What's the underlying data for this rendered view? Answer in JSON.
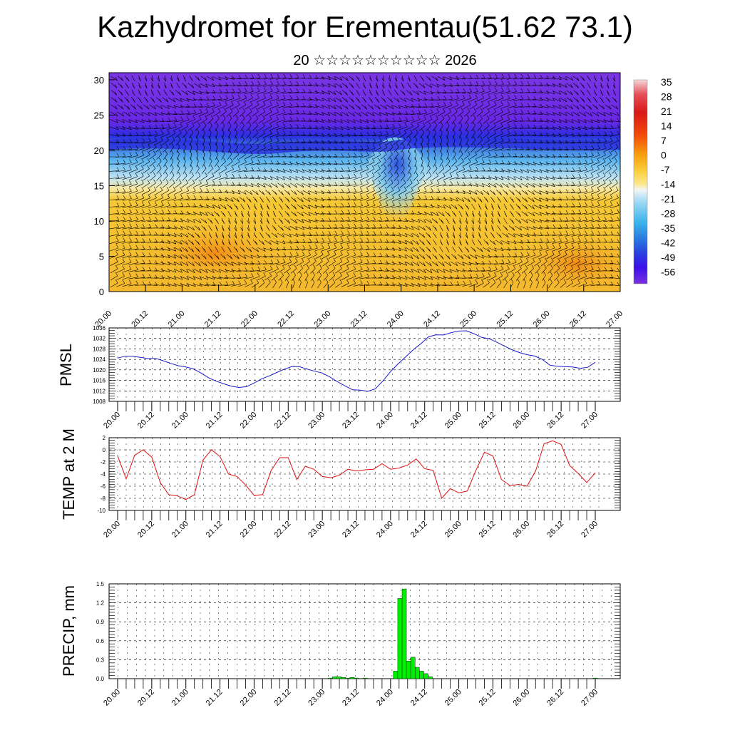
{
  "header": {
    "title": "Kazhydromet for Erementau(51.62 73.1)",
    "subtitle": "20 ☆☆☆☆☆☆☆☆☆☆ 2026"
  },
  "time_labels": [
    "20.00",
    "20.12",
    "21.00",
    "21.12",
    "22.00",
    "22.12",
    "23.00",
    "23.12",
    "24.00",
    "24.12",
    "25.00",
    "25.12",
    "26.00",
    "26.12",
    "27.00"
  ],
  "chart_data": [
    {
      "type": "heatmap",
      "name": "temperature cross-section with wind barbs",
      "title": "",
      "ylabel": "",
      "yticks": [
        "0",
        "5",
        "10",
        "15",
        "20",
        "25",
        "30"
      ],
      "ylim": [
        0,
        31
      ],
      "colorbar": {
        "labels": [
          "35",
          "28",
          "21",
          "14",
          "7",
          "0",
          "-7",
          "-14",
          "-21",
          "-28",
          "-35",
          "-42",
          "-49",
          "-56"
        ],
        "colors": [
          "#f3c4c8",
          "#e6505a",
          "#d81818",
          "#f24a08",
          "#f8a010",
          "#fbd040",
          "#fce88c",
          "#eaf3f8",
          "#9ed8f4",
          "#38b4ec",
          "#2a7ae0",
          "#2a40e0",
          "#3a10e8",
          "#7a30e0"
        ]
      },
      "regions": {
        "lower_color": "#f6c030",
        "hot_core_color": "#f28a10",
        "mid_color": "#a8dcf4",
        "upper_color": "#7a36e4",
        "tropopause_color": "#2a2ee0"
      }
    },
    {
      "type": "line",
      "ylabel": "PMSL",
      "ylim": [
        1008,
        1036
      ],
      "yticks": [
        "1008",
        "1012",
        "1016",
        "1020",
        "1024",
        "1028",
        "1032",
        "1036"
      ],
      "color": "#1a1acc",
      "values": [
        1024.5,
        1025.2,
        1025.2,
        1024.8,
        1024.3,
        1024.4,
        1023.5,
        1022.5,
        1021.6,
        1021.1,
        1020.4,
        1018.8,
        1017.0,
        1015.7,
        1014.7,
        1013.8,
        1013.3,
        1013.6,
        1015.0,
        1016.6,
        1017.7,
        1019.0,
        1020.3,
        1021.3,
        1021.2,
        1020.3,
        1019.5,
        1018.8,
        1017.3,
        1015.5,
        1013.9,
        1012.4,
        1012.3,
        1011.8,
        1012.8,
        1015.8,
        1019.4,
        1022.3,
        1025.0,
        1027.7,
        1030.0,
        1032.6,
        1033.4,
        1033.3,
        1034.2,
        1034.8,
        1034.9,
        1033.8,
        1032.4,
        1031.9,
        1030.6,
        1029.1,
        1027.7,
        1026.6,
        1025.8,
        1025.3,
        1024.0,
        1021.8,
        1021.4,
        1021.2,
        1021.1,
        1020.6,
        1021.0,
        1022.9
      ]
    },
    {
      "type": "line",
      "ylabel": "TEMP at 2 M",
      "ylim": [
        -10,
        2
      ],
      "yticks": [
        "-10",
        "-8",
        "-6",
        "-4",
        "-2",
        "0",
        "2"
      ],
      "color": "#dd1111",
      "values": [
        -1.0,
        -4.8,
        -0.9,
        0.0,
        -1.2,
        -5.4,
        -7.4,
        -7.6,
        -8.2,
        -7.4,
        -1.7,
        0.0,
        -1.1,
        -4.0,
        -4.4,
        -5.8,
        -7.5,
        -7.4,
        -3.4,
        -1.3,
        -1.3,
        -4.9,
        -2.7,
        -3.2,
        -4.4,
        -4.6,
        -4.2,
        -3.2,
        -3.5,
        -3.3,
        -3.2,
        -2.3,
        -3.2,
        -3.0,
        -2.5,
        -1.5,
        -3.1,
        -3.4,
        -8.0,
        -6.4,
        -7.1,
        -6.8,
        -3.4,
        -0.4,
        -1.0,
        -4.9,
        -5.9,
        -5.7,
        -6.0,
        -3.5,
        1.0,
        1.5,
        0.9,
        -2.6,
        -3.9,
        -5.4,
        -3.8
      ]
    },
    {
      "type": "bar",
      "ylabel": "PRECIP, mm",
      "ylim": [
        0,
        1.5
      ],
      "yticks": [
        "0.0",
        "0.3",
        "0.6",
        "0.9",
        "1.2",
        "1.5"
      ],
      "color": "#00ee00",
      "values": [
        0,
        0,
        0,
        0,
        0,
        0,
        0,
        0,
        0,
        0,
        0,
        0,
        0,
        0,
        0,
        0,
        0,
        0,
        0,
        0,
        0,
        0,
        0,
        0,
        0,
        0,
        0,
        0,
        0,
        0,
        0,
        0,
        0,
        0,
        0,
        0,
        0,
        0,
        0,
        0,
        0,
        0,
        0,
        0,
        0,
        0,
        0,
        0,
        0,
        0.01,
        0.03,
        0.03,
        0.02,
        0.01,
        0.02,
        0.01,
        0,
        0.01,
        0,
        0,
        0,
        0,
        0,
        0,
        0.12,
        1.27,
        1.42,
        0.28,
        0.34,
        0.18,
        0.12,
        0.08,
        0.03,
        0,
        0,
        0,
        0,
        0,
        0,
        0,
        0,
        0,
        0,
        0,
        0,
        0,
        0,
        0,
        0,
        0,
        0,
        0,
        0,
        0,
        0,
        0,
        0,
        0,
        0,
        0,
        0,
        0,
        0,
        0,
        0,
        0,
        0,
        0,
        0,
        0,
        0.01
      ]
    }
  ]
}
